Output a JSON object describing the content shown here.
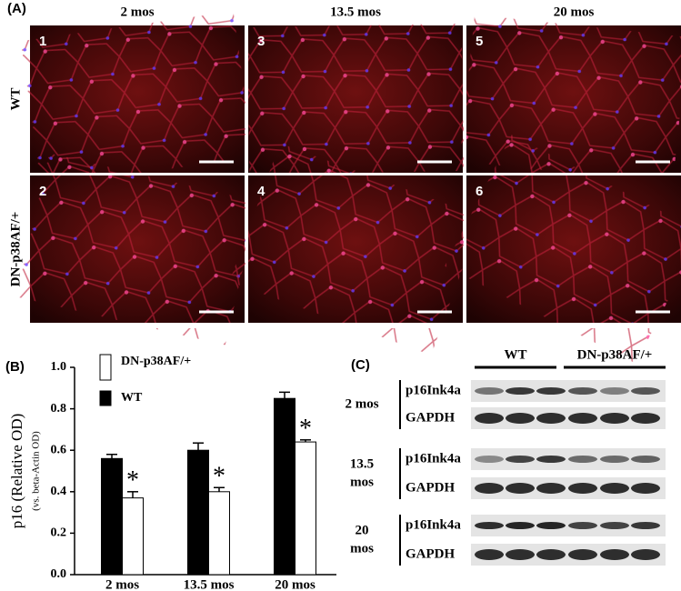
{
  "panel_a": {
    "label": "(A)",
    "columns": [
      "2 mos",
      "13.5 mos",
      "20 mos"
    ],
    "rows": [
      "WT",
      "DN-p38AF/+"
    ],
    "panels": [
      [
        "1",
        "3",
        "5"
      ],
      [
        "2",
        "4",
        "6"
      ]
    ]
  },
  "chart_data": {
    "type": "bar",
    "panel_label": "(B)",
    "y_label": "p16 (Relative OD)",
    "y_sublabel": "(vs. beta-Actin OD)",
    "categories": [
      "2 mos",
      "13.5 mos",
      "20 mos"
    ],
    "series": [
      {
        "name": "WT",
        "color": "#000000",
        "values": [
          0.56,
          0.6,
          0.85
        ],
        "errors": [
          0.02,
          0.035,
          0.03
        ]
      },
      {
        "name": "DN-p38AF/+",
        "color": "#ffffff",
        "values": [
          0.37,
          0.4,
          0.64
        ],
        "errors": [
          0.03,
          0.02,
          0.01
        ],
        "annotations": [
          "*",
          "*",
          "*"
        ]
      }
    ],
    "ylim": [
      0,
      1
    ],
    "yticks": [
      {
        "value": 0,
        "label": "0.0"
      },
      0.2,
      0.4,
      0.6,
      0.8,
      {
        "value": 1,
        "label": "1.0"
      }
    ]
  },
  "panel_c": {
    "label": "(C)",
    "groups": [
      "WT",
      "DN-p38AF/+"
    ],
    "blocks": [
      {
        "label": [
          "2 mos"
        ],
        "bands": [
          "p16Ink4a",
          "GAPDH"
        ]
      },
      {
        "label": [
          "13.5",
          "mos"
        ],
        "bands": [
          "p16Ink4a",
          "GAPDH"
        ]
      },
      {
        "label": [
          "20",
          "mos"
        ],
        "bands": [
          "p16Ink4a",
          "GAPDH"
        ]
      }
    ]
  }
}
